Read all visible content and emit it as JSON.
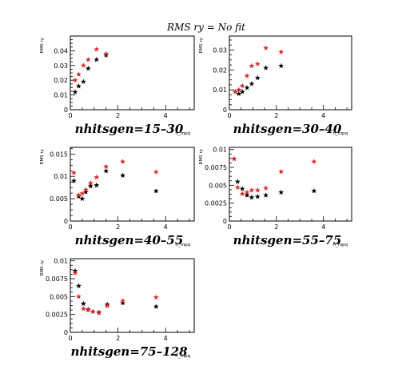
{
  "figure_title": "RMS ry = No fit",
  "colors": {
    "series_a": "#000000",
    "series_b": "#e8202a"
  },
  "chart_data": [
    {
      "type": "scatter",
      "label": "nhitsgen=15–30",
      "ylabel": "RMS ry",
      "xlabel": "n_mpq",
      "xlim": [
        0,
        5.2
      ],
      "ylim": [
        0,
        0.05
      ],
      "xticks": [
        "0",
        "2",
        "4"
      ],
      "yticks": [
        "0",
        "0.01",
        "0.02",
        "0.03",
        "0.04"
      ],
      "ytick_values": [
        0,
        0.01,
        0.02,
        0.03,
        0.04
      ],
      "series": [
        {
          "color": "#000000",
          "x": [
            0.2,
            0.35,
            0.55,
            0.75,
            1.1,
            1.5
          ],
          "y": [
            0.012,
            0.016,
            0.019,
            0.028,
            0.034,
            0.037
          ]
        },
        {
          "color": "#e8202a",
          "x": [
            0.2,
            0.35,
            0.55,
            0.75,
            1.1,
            1.5
          ],
          "y": [
            0.02,
            0.024,
            0.03,
            0.034,
            0.041,
            0.038
          ]
        }
      ]
    },
    {
      "type": "scatter",
      "label": "nhitsgen=30–40",
      "ylabel": "RMS ry",
      "xlabel": "n_mpq",
      "xlim": [
        0,
        5.2
      ],
      "ylim": [
        0,
        0.037
      ],
      "xticks": [
        "0",
        "2",
        "4"
      ],
      "yticks": [
        "0",
        "0.01",
        "0.02",
        "0.03"
      ],
      "ytick_values": [
        0,
        0.01,
        0.02,
        0.03
      ],
      "series": [
        {
          "color": "#000000",
          "x": [
            0.25,
            0.4,
            0.55,
            0.75,
            0.95,
            1.2,
            1.55,
            2.2
          ],
          "y": [
            0.009,
            0.008,
            0.009,
            0.011,
            0.013,
            0.016,
            0.021,
            0.022
          ]
        },
        {
          "color": "#e8202a",
          "x": [
            0.25,
            0.4,
            0.55,
            0.75,
            0.95,
            1.2,
            1.55,
            2.2
          ],
          "y": [
            0.009,
            0.01,
            0.012,
            0.017,
            0.022,
            0.023,
            0.031,
            0.029
          ]
        }
      ]
    },
    {
      "type": "scatter",
      "label": "nhitsgen=40–55",
      "ylabel": "RMS ry",
      "xlabel": "n_mpq",
      "xlim": [
        0,
        5.2
      ],
      "ylim": [
        0,
        0.0165
      ],
      "xticks": [
        "0",
        "2",
        "4"
      ],
      "yticks": [
        "0",
        "0.005",
        "0.01",
        "0.015"
      ],
      "ytick_values": [
        0,
        0.005,
        0.01,
        0.015
      ],
      "series": [
        {
          "color": "#000000",
          "x": [
            0.15,
            0.35,
            0.5,
            0.65,
            0.85,
            1.1,
            1.5,
            2.2,
            3.6
          ],
          "y": [
            0.009,
            0.0055,
            0.005,
            0.0065,
            0.0078,
            0.008,
            0.0112,
            0.0102,
            0.0067
          ]
        },
        {
          "color": "#e8202a",
          "x": [
            0.15,
            0.35,
            0.5,
            0.65,
            0.85,
            1.1,
            1.5,
            2.2,
            3.6
          ],
          "y": [
            0.0108,
            0.0058,
            0.0062,
            0.007,
            0.0085,
            0.0098,
            0.0122,
            0.0133,
            0.011
          ]
        }
      ]
    },
    {
      "type": "scatter",
      "label": "nhitsgen=55–75",
      "ylabel": "RMS ry",
      "xlabel": "n_mpq",
      "xlim": [
        0,
        5.2
      ],
      "ylim": [
        0,
        0.0103
      ],
      "xticks": [
        "0",
        "2",
        "4"
      ],
      "yticks": [
        "0",
        "0.0025",
        "0.005",
        "0.0075",
        "0.01"
      ],
      "ytick_values": [
        0,
        0.0025,
        0.005,
        0.0075,
        0.01
      ],
      "series": [
        {
          "color": "#000000",
          "x": [
            0.2,
            0.35,
            0.55,
            0.75,
            0.95,
            1.2,
            1.55,
            2.2,
            3.6
          ],
          "y": [
            0.0087,
            0.0055,
            0.0045,
            0.0036,
            0.0033,
            0.0034,
            0.0036,
            0.004,
            0.0042
          ]
        },
        {
          "color": "#e8202a",
          "x": [
            0.2,
            0.35,
            0.55,
            0.75,
            0.95,
            1.2,
            1.55,
            2.2,
            3.6
          ],
          "y": [
            0.0087,
            0.0047,
            0.0038,
            0.004,
            0.0043,
            0.0043,
            0.0046,
            0.0069,
            0.0083
          ]
        }
      ]
    },
    {
      "type": "scatter",
      "label": "nhitsgen=75–128",
      "ylabel": "RMS ry",
      "xlabel": "n_mpq",
      "xlim": [
        0,
        5.2
      ],
      "ylim": [
        0,
        0.0103
      ],
      "xticks": [
        "0",
        "2",
        "4"
      ],
      "yticks": [
        "0",
        "0.0025",
        "0.005",
        "0.0075",
        "0.01"
      ],
      "ytick_values": [
        0,
        0.0025,
        0.005,
        0.0075,
        0.01
      ],
      "series": [
        {
          "color": "#000000",
          "x": [
            0.2,
            0.35,
            0.55,
            0.75,
            0.95,
            1.2,
            1.55,
            2.2,
            3.6
          ],
          "y": [
            0.0086,
            0.0065,
            0.004,
            0.0032,
            0.0029,
            0.0028,
            0.0039,
            0.0041,
            0.0036
          ]
        },
        {
          "color": "#e8202a",
          "x": [
            0.2,
            0.35,
            0.55,
            0.75,
            0.95,
            1.2,
            1.55,
            2.2,
            3.6
          ],
          "y": [
            0.0083,
            0.005,
            0.0033,
            0.0031,
            0.0029,
            0.0027,
            0.0037,
            0.0044,
            0.0049
          ]
        }
      ]
    }
  ]
}
